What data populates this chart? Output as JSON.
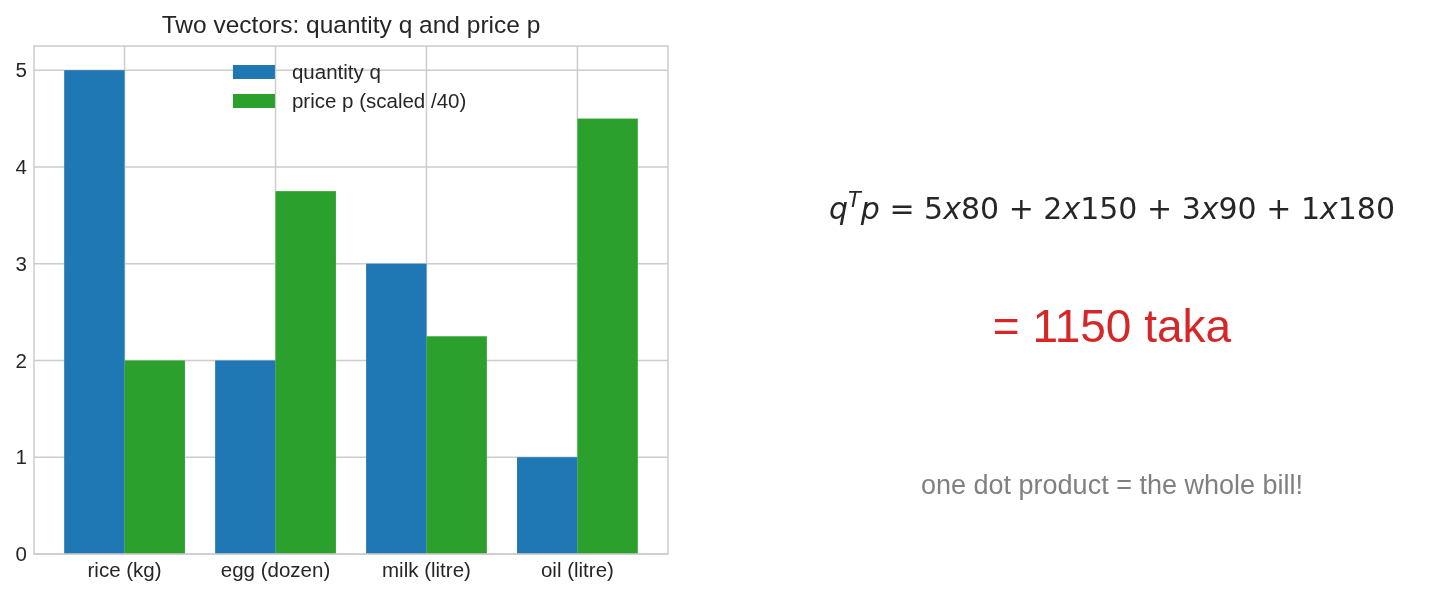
{
  "chart_data": [
    {
      "type": "bar",
      "title": "Two vectors: quantity q and price p",
      "categories": [
        "rice (kg)",
        "egg (dozen)",
        "milk (litre)",
        "oil (litre)"
      ],
      "series": [
        {
          "name": "quantity q",
          "color": "#1f77b4",
          "values": [
            5,
            2,
            3,
            1
          ]
        },
        {
          "name": "price p (scaled /40)",
          "color": "#2ca02c",
          "values": [
            2,
            3.75,
            2.25,
            4.5
          ]
        }
      ],
      "ylim": [
        0,
        5.25
      ],
      "yticks": [
        0,
        1,
        2,
        3,
        4,
        5
      ],
      "grid": true,
      "legend": "top"
    },
    {
      "type": "other",
      "annotations": [
        "q$^{T}$p = 5x80 + 2x150 + 3x90 + 1x180",
        "= 1150 taka",
        "one dot product = the whole bill!"
      ]
    }
  ]
}
